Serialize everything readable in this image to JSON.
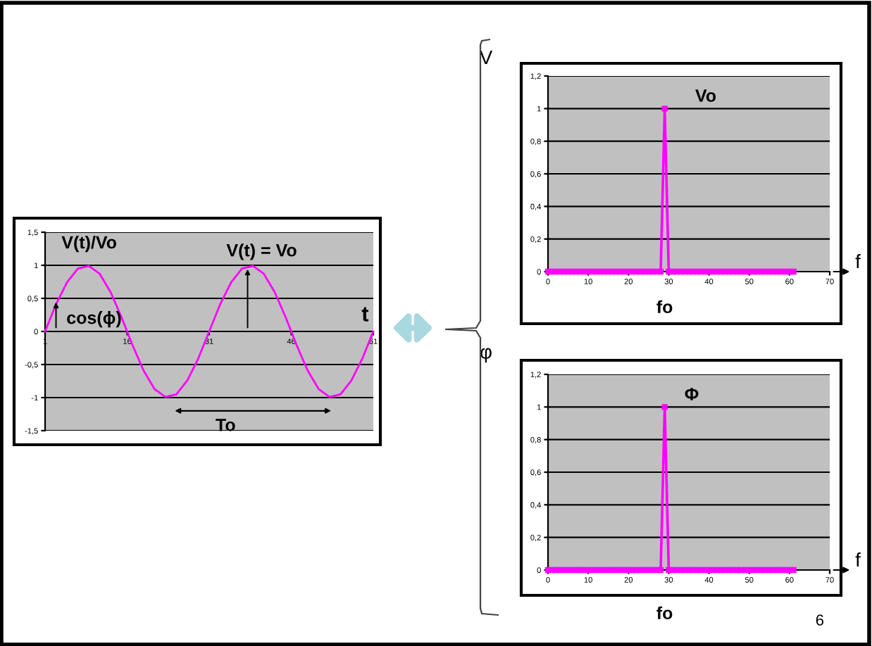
{
  "chart_data": [
    {
      "type": "line",
      "xlabel": "t",
      "x": [
        1,
        3,
        5,
        7,
        9,
        11,
        13,
        15,
        17,
        19,
        21,
        23,
        25,
        27,
        29,
        31,
        33,
        35,
        37,
        39,
        41,
        43,
        45,
        47,
        49,
        51,
        53,
        55,
        57,
        59,
        61
      ],
      "series": [
        {
          "color": "#ff00ff",
          "values": [
            0,
            0.41,
            0.74,
            0.95,
            0.99,
            0.87,
            0.59,
            0.21,
            -0.21,
            -0.59,
            -0.87,
            -0.99,
            -0.95,
            -0.74,
            -0.41,
            0,
            0.41,
            0.74,
            0.95,
            0.99,
            0.87,
            0.59,
            0.21,
            -0.21,
            -0.59,
            -0.87,
            -0.99,
            -0.95,
            -0.74,
            -0.41,
            0
          ]
        }
      ],
      "xlim": [
        1,
        61
      ],
      "xticks": [
        1,
        16,
        31,
        46,
        61
      ],
      "ylim": [
        -1.5,
        1.5
      ],
      "yticks": [
        {
          "value": -1.5,
          "label": "-1,5"
        },
        -1,
        {
          "value": -0.5,
          "label": "-0,5"
        },
        0,
        {
          "value": 0.5,
          "label": "0,5"
        },
        1,
        {
          "value": 1.5,
          "label": "1,5"
        }
      ],
      "grid": "y",
      "marker": "none",
      "annotations": [
        "V(t)/Vo",
        "V(t) = Vo",
        "cos(ϕ)",
        "To"
      ]
    },
    {
      "type": "line",
      "xlabel": "f",
      "ylabel": "V",
      "x": [
        0,
        1,
        2,
        3,
        4,
        5,
        6,
        7,
        8,
        9,
        10,
        11,
        12,
        13,
        14,
        15,
        16,
        17,
        18,
        19,
        20,
        21,
        22,
        23,
        24,
        25,
        26,
        27,
        28,
        29,
        30,
        31,
        32,
        33,
        34,
        35,
        36,
        37,
        38,
        39,
        40,
        41,
        42,
        43,
        44,
        45,
        46,
        47,
        48,
        49,
        50,
        51,
        52,
        53,
        54,
        55,
        56,
        57,
        58,
        59,
        60,
        61
      ],
      "series": [
        {
          "color": "#ff00ff",
          "values": [
            0,
            0,
            0,
            0,
            0,
            0,
            0,
            0,
            0,
            0,
            0,
            0,
            0,
            0,
            0,
            0,
            0,
            0,
            0,
            0,
            0,
            0,
            0,
            0,
            0,
            0,
            0,
            0,
            0,
            1,
            0,
            0,
            0,
            0,
            0,
            0,
            0,
            0,
            0,
            0,
            0,
            0,
            0,
            0,
            0,
            0,
            0,
            0,
            0,
            0,
            0,
            0,
            0,
            0,
            0,
            0,
            0,
            0,
            0,
            0,
            0,
            0
          ]
        }
      ],
      "xlim": [
        0,
        70
      ],
      "xticks": [
        0,
        10,
        20,
        30,
        40,
        50,
        60,
        70
      ],
      "ylim": [
        0,
        1.2
      ],
      "yticks": [
        0,
        {
          "value": 0.2,
          "label": "0,2"
        },
        {
          "value": 0.4,
          "label": "0,4"
        },
        {
          "value": 0.6,
          "label": "0,6"
        },
        {
          "value": 0.8,
          "label": "0,8"
        },
        1,
        {
          "value": 1.2,
          "label": "1,2"
        }
      ],
      "grid": "y",
      "marker": "square",
      "annotations": [
        "Vo",
        "fo"
      ]
    },
    {
      "type": "line",
      "xlabel": "f",
      "ylabel": "φ",
      "x": [
        0,
        1,
        2,
        3,
        4,
        5,
        6,
        7,
        8,
        9,
        10,
        11,
        12,
        13,
        14,
        15,
        16,
        17,
        18,
        19,
        20,
        21,
        22,
        23,
        24,
        25,
        26,
        27,
        28,
        29,
        30,
        31,
        32,
        33,
        34,
        35,
        36,
        37,
        38,
        39,
        40,
        41,
        42,
        43,
        44,
        45,
        46,
        47,
        48,
        49,
        50,
        51,
        52,
        53,
        54,
        55,
        56,
        57,
        58,
        59,
        60,
        61
      ],
      "series": [
        {
          "color": "#ff00ff",
          "values": [
            0,
            0,
            0,
            0,
            0,
            0,
            0,
            0,
            0,
            0,
            0,
            0,
            0,
            0,
            0,
            0,
            0,
            0,
            0,
            0,
            0,
            0,
            0,
            0,
            0,
            0,
            0,
            0,
            0,
            1,
            0,
            0,
            0,
            0,
            0,
            0,
            0,
            0,
            0,
            0,
            0,
            0,
            0,
            0,
            0,
            0,
            0,
            0,
            0,
            0,
            0,
            0,
            0,
            0,
            0,
            0,
            0,
            0,
            0,
            0,
            0,
            0
          ]
        }
      ],
      "xlim": [
        0,
        70
      ],
      "xticks": [
        0,
        10,
        20,
        30,
        40,
        50,
        60,
        70
      ],
      "ylim": [
        0,
        1.2
      ],
      "yticks": [
        0,
        {
          "value": 0.2,
          "label": "0,2"
        },
        {
          "value": 0.4,
          "label": "0,4"
        },
        {
          "value": 0.6,
          "label": "0,6"
        },
        {
          "value": 0.8,
          "label": "0,8"
        },
        1,
        {
          "value": 1.2,
          "label": "1,2"
        }
      ],
      "grid": "y",
      "marker": "square",
      "annotations": [
        "Φ",
        "fo",
        "6"
      ]
    }
  ]
}
